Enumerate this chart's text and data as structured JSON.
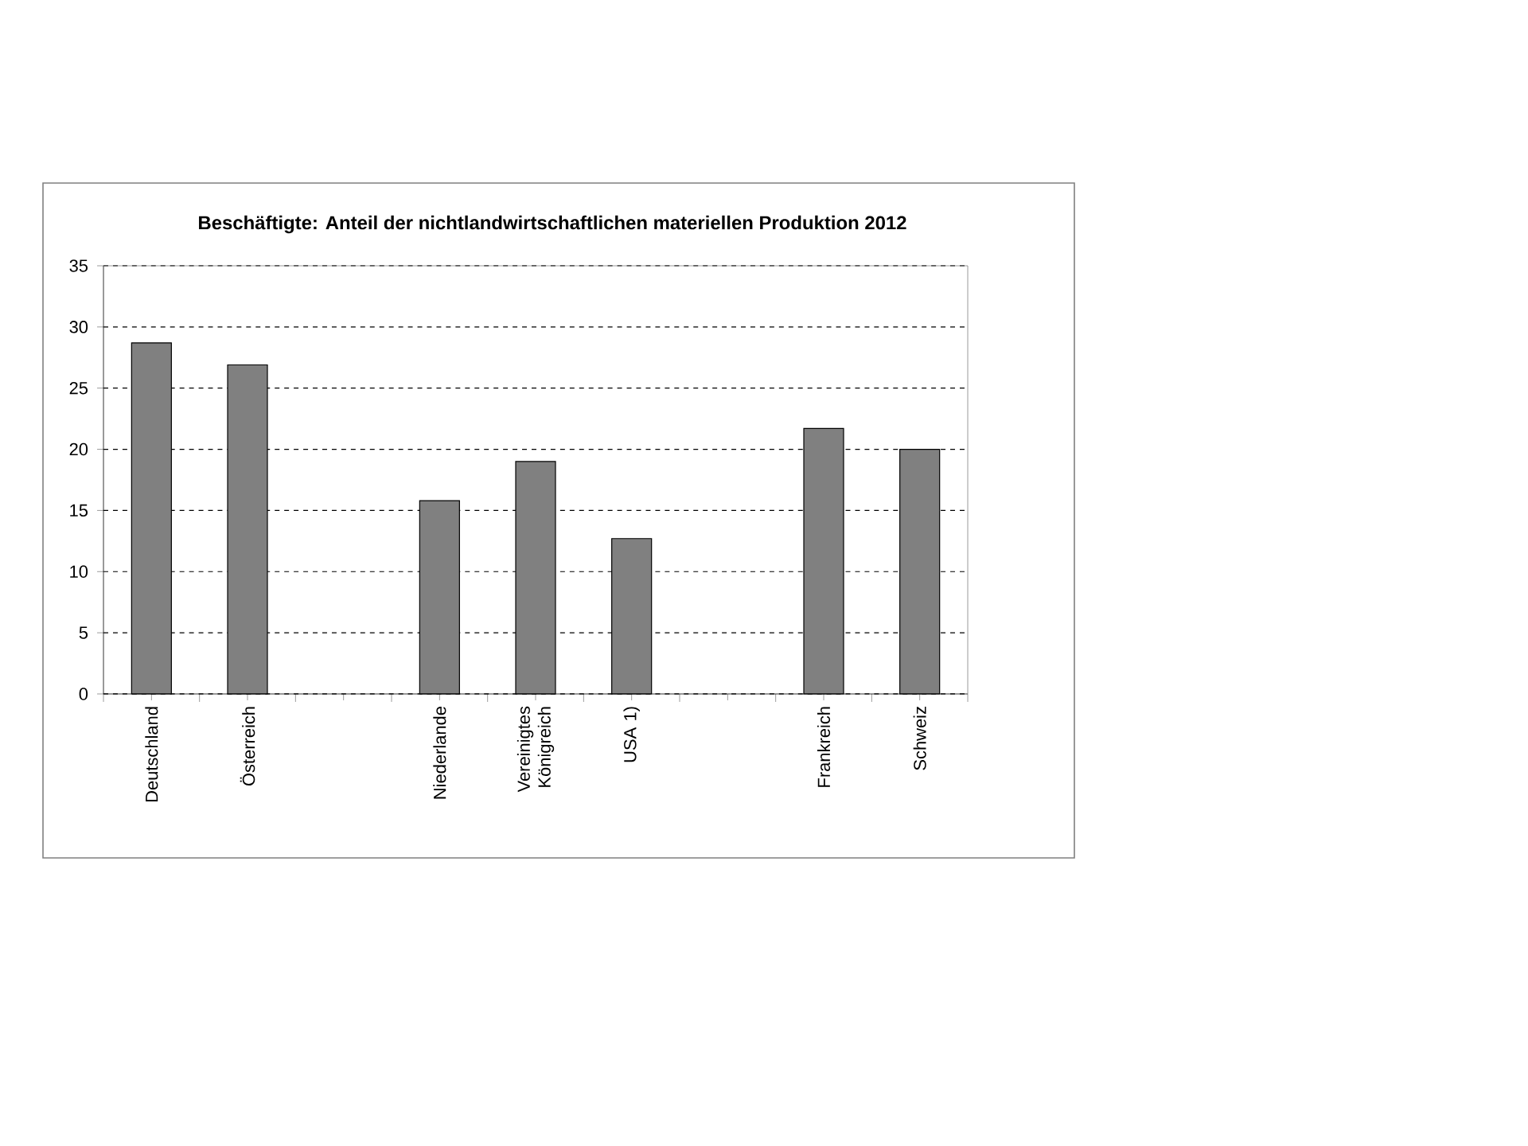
{
  "chart_data": {
    "type": "bar",
    "title": "Beschäftigte: Anteil der nichtlandwirtschaftlichen materiellen Produktion 2012",
    "categories": [
      "Deutschland",
      "Österreich",
      null,
      "Niederlande",
      "Vereinigtes Königreich",
      "USA 1)",
      null,
      "Frankreich",
      "Schweiz"
    ],
    "values": [
      28.7,
      26.9,
      null,
      15.8,
      19.0,
      12.7,
      null,
      21.7,
      20.0
    ],
    "color": "#808080",
    "ylim": [
      0,
      35
    ],
    "yticks": [
      0,
      5,
      10,
      15,
      20,
      25,
      30,
      35
    ],
    "grid": "y"
  }
}
